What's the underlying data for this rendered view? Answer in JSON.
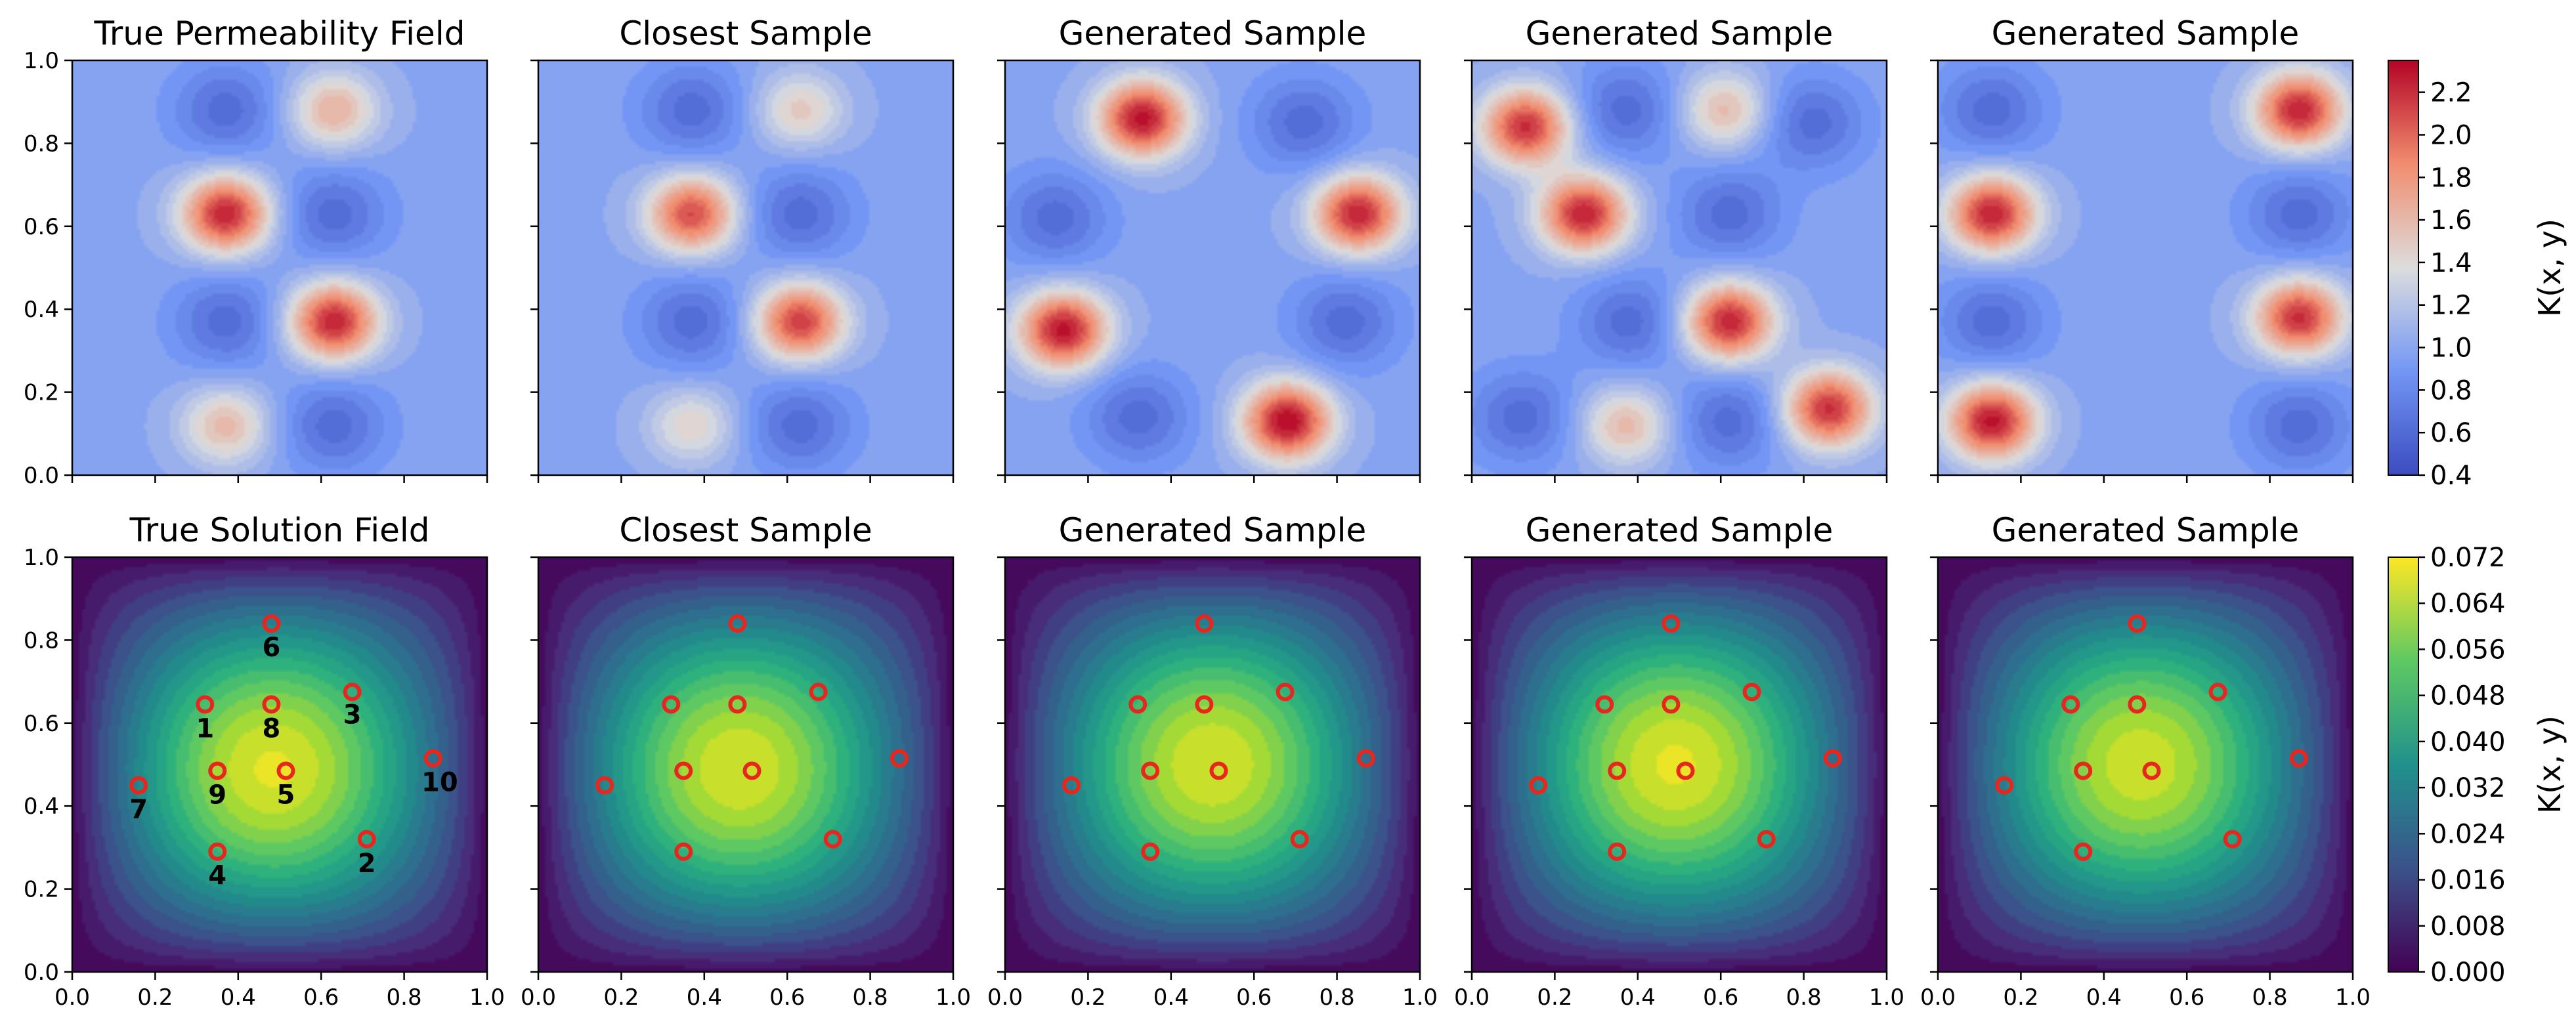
{
  "chart_data": [
    {
      "type": "heatmap",
      "row": "permeability",
      "panels": [
        {
          "title": "True Permeability Field",
          "blobs": [
            {
              "x": 0.37,
              "y": 0.63,
              "a": 2.25
            },
            {
              "x": 0.63,
              "y": 0.37,
              "a": 2.25
            },
            {
              "x": 0.63,
              "y": 0.88,
              "a": 1.65
            },
            {
              "x": 0.37,
              "y": 0.12,
              "a": 1.6
            }
          ],
          "lows": [
            {
              "x": 0.37,
              "y": 0.88
            },
            {
              "x": 0.63,
              "y": 0.63
            },
            {
              "x": 0.37,
              "y": 0.37
            },
            {
              "x": 0.63,
              "y": 0.12
            }
          ]
        },
        {
          "title": "Closest Sample",
          "blobs": [
            {
              "x": 0.37,
              "y": 0.63,
              "a": 2.1
            },
            {
              "x": 0.63,
              "y": 0.37,
              "a": 2.15
            },
            {
              "x": 0.63,
              "y": 0.88,
              "a": 1.5
            },
            {
              "x": 0.37,
              "y": 0.12,
              "a": 1.45
            }
          ],
          "lows": [
            {
              "x": 0.37,
              "y": 0.88
            },
            {
              "x": 0.63,
              "y": 0.63
            },
            {
              "x": 0.37,
              "y": 0.37
            },
            {
              "x": 0.63,
              "y": 0.12
            }
          ]
        },
        {
          "title": "Generated Sample",
          "blobs": [
            {
              "x": 0.33,
              "y": 0.86,
              "a": 2.3
            },
            {
              "x": 0.85,
              "y": 0.63,
              "a": 2.25
            },
            {
              "x": 0.14,
              "y": 0.35,
              "a": 2.3
            },
            {
              "x": 0.68,
              "y": 0.13,
              "a": 2.35
            }
          ],
          "lows": [
            {
              "x": 0.72,
              "y": 0.85
            },
            {
              "x": 0.12,
              "y": 0.62
            },
            {
              "x": 0.82,
              "y": 0.37
            },
            {
              "x": 0.32,
              "y": 0.14
            }
          ]
        },
        {
          "title": "Generated Sample",
          "blobs": [
            {
              "x": 0.13,
              "y": 0.84,
              "a": 2.2
            },
            {
              "x": 0.27,
              "y": 0.63,
              "a": 2.25
            },
            {
              "x": 0.61,
              "y": 0.88,
              "a": 1.6
            },
            {
              "x": 0.62,
              "y": 0.37,
              "a": 2.25
            },
            {
              "x": 0.86,
              "y": 0.16,
              "a": 2.2
            },
            {
              "x": 0.37,
              "y": 0.12,
              "a": 1.6
            }
          ],
          "lows": [
            {
              "x": 0.37,
              "y": 0.88
            },
            {
              "x": 0.82,
              "y": 0.85
            },
            {
              "x": 0.62,
              "y": 0.63
            },
            {
              "x": 0.38,
              "y": 0.37
            },
            {
              "x": 0.12,
              "y": 0.14
            },
            {
              "x": 0.62,
              "y": 0.13
            }
          ]
        },
        {
          "title": "Generated Sample",
          "blobs": [
            {
              "x": 0.13,
              "y": 0.63,
              "a": 2.25
            },
            {
              "x": 0.87,
              "y": 0.88,
              "a": 2.25
            },
            {
              "x": 0.87,
              "y": 0.38,
              "a": 2.2
            },
            {
              "x": 0.13,
              "y": 0.13,
              "a": 2.3
            }
          ],
          "lows": [
            {
              "x": 0.13,
              "y": 0.88
            },
            {
              "x": 0.87,
              "y": 0.63
            },
            {
              "x": 0.13,
              "y": 0.37
            },
            {
              "x": 0.87,
              "y": 0.12
            }
          ]
        }
      ],
      "xlim": [
        0,
        1
      ],
      "ylim": [
        0,
        1
      ],
      "xticks": [
        "0.0",
        "0.2",
        "0.4",
        "0.6",
        "0.8",
        "1.0"
      ],
      "yticks": [
        "0.0",
        "0.2",
        "0.4",
        "0.6",
        "0.8",
        "1.0"
      ],
      "colormap": "coolwarm",
      "colorbar": {
        "label": "K(x, y)",
        "range": [
          0.4,
          2.35
        ],
        "ticks": [
          "0.4",
          "0.6",
          "0.8",
          "1.0",
          "1.2",
          "1.4",
          "1.6",
          "1.8",
          "2.0",
          "2.2"
        ]
      }
    },
    {
      "type": "heatmap",
      "row": "solution",
      "panels": [
        {
          "title": "True Solution Field",
          "peak": {
            "x": 0.47,
            "y": 0.48,
            "v": 0.069
          },
          "annotated": true
        },
        {
          "title": "Closest Sample",
          "peak": {
            "x": 0.47,
            "y": 0.48,
            "v": 0.068
          },
          "annotated": false
        },
        {
          "title": "Generated Sample",
          "peak": {
            "x": 0.5,
            "y": 0.5,
            "v": 0.068
          },
          "annotated": false
        },
        {
          "title": "Generated Sample",
          "peak": {
            "x": 0.48,
            "y": 0.5,
            "v": 0.069
          },
          "annotated": false
        },
        {
          "title": "Generated Sample",
          "peak": {
            "x": 0.48,
            "y": 0.5,
            "v": 0.067
          },
          "annotated": false
        }
      ],
      "sensors": [
        {
          "label": "1",
          "x": 0.32,
          "y": 0.645
        },
        {
          "label": "2",
          "x": 0.71,
          "y": 0.32
        },
        {
          "label": "3",
          "x": 0.675,
          "y": 0.675
        },
        {
          "label": "4",
          "x": 0.35,
          "y": 0.29
        },
        {
          "label": "5",
          "x": 0.515,
          "y": 0.485
        },
        {
          "label": "6",
          "x": 0.48,
          "y": 0.84
        },
        {
          "label": "7",
          "x": 0.16,
          "y": 0.45
        },
        {
          "label": "8",
          "x": 0.48,
          "y": 0.645
        },
        {
          "label": "9",
          "x": 0.35,
          "y": 0.485
        },
        {
          "label": "10",
          "x": 0.87,
          "y": 0.515
        }
      ],
      "xlim": [
        0,
        1
      ],
      "ylim": [
        0,
        1
      ],
      "xticks": [
        "0.0",
        "0.2",
        "0.4",
        "0.6",
        "0.8",
        "1.0"
      ],
      "yticks": [
        "0.0",
        "0.2",
        "0.4",
        "0.6",
        "0.8",
        "1.0"
      ],
      "colormap": "viridis",
      "colorbar": {
        "label": "K(x, y)",
        "range": [
          0.0,
          0.072
        ],
        "ticks": [
          "0.000",
          "0.008",
          "0.016",
          "0.024",
          "0.032",
          "0.040",
          "0.048",
          "0.056",
          "0.064",
          "0.072"
        ]
      }
    }
  ]
}
